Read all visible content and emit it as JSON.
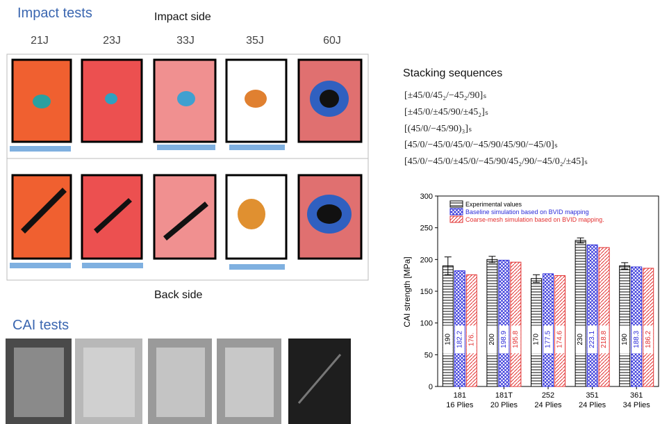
{
  "impact_title": "Impact tests",
  "impact_side": "Impact side",
  "back_side": "Back side",
  "energies": [
    "21J",
    "23J",
    "33J",
    "35J",
    "60J"
  ],
  "cai_title": "CAI tests",
  "stacking_title": "Stacking sequences",
  "stacking_sequences": [
    "[±45/0/45₂/−45₂/90]ₛ",
    "[±45/0/±45/90/±45₂]ₛ",
    "[(45/0/−45/90)₃]ₛ",
    "[45/0/−45/0/45/0/−45/90/45/90/−45/0]ₛ",
    "[45/0/−45/0/±45/0/−45/90/45₂/90/−45/0₂/±45]ₛ"
  ],
  "chart_data": {
    "type": "bar",
    "y_label": "CAI strength [MPa]",
    "categories": [
      "181",
      "181T",
      "252",
      "351",
      "361"
    ],
    "category_sublabels": [
      "16 Plies",
      "20 Plies",
      "24 Plies",
      "24 Plies",
      "34 Plies"
    ],
    "ylim": [
      0,
      300
    ],
    "yticks": [
      0,
      50,
      100,
      150,
      200,
      250,
      300
    ],
    "legend": "top-left",
    "series": [
      {
        "name": "Experimental values",
        "color": "#000000",
        "values": [
          190,
          200,
          170,
          230,
          190
        ],
        "errors": [
          14,
          5,
          6,
          4,
          5
        ]
      },
      {
        "name": "Baseline simulation based on BVID mapping",
        "color": "#2a2ad8",
        "values": [
          182.2,
          198.9,
          177.5,
          223.1,
          188.3
        ]
      },
      {
        "name": "Coarse-mesh simulation based on BVID mapping.",
        "color": "#e23030",
        "values": [
          176,
          195.8,
          174.6,
          218.8,
          186.2
        ],
        "value_labels": [
          "176.",
          "195.8",
          "174.6",
          "218.8",
          "186.2"
        ]
      }
    ]
  }
}
